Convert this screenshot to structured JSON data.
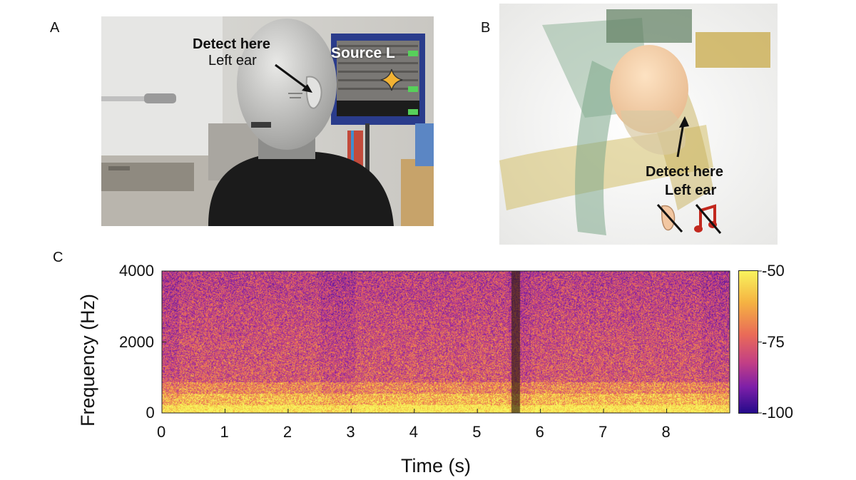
{
  "panels": {
    "a": {
      "letter": "A",
      "label_detect": "Detect here",
      "label_ear": "Left ear",
      "label_source": "Source L"
    },
    "b": {
      "letter": "B",
      "label_detect": "Detect here",
      "label_ear": "Left ear",
      "icons": [
        "crossed-ear-icon",
        "crossed-music-note-icon"
      ]
    },
    "c": {
      "letter": "C"
    }
  },
  "chart_data": {
    "type": "heatmap",
    "title": "",
    "xlabel": "Time (s)",
    "ylabel": "Frequency (Hz)",
    "xlim": [
      0,
      9
    ],
    "ylim": [
      0,
      4000
    ],
    "x_ticks": [
      0,
      1,
      2,
      3,
      4,
      5,
      6,
      7,
      8
    ],
    "y_ticks": [
      0,
      2000,
      4000
    ],
    "colorbar": {
      "range": [
        -100,
        -50
      ],
      "ticks": [
        -50,
        -75,
        -100
      ],
      "colormap": "plasma"
    },
    "colors": {
      "low": "#240a8a",
      "mid": "#c13e86",
      "high": "#f8f35d"
    },
    "gap_band_time": 5.6
  }
}
